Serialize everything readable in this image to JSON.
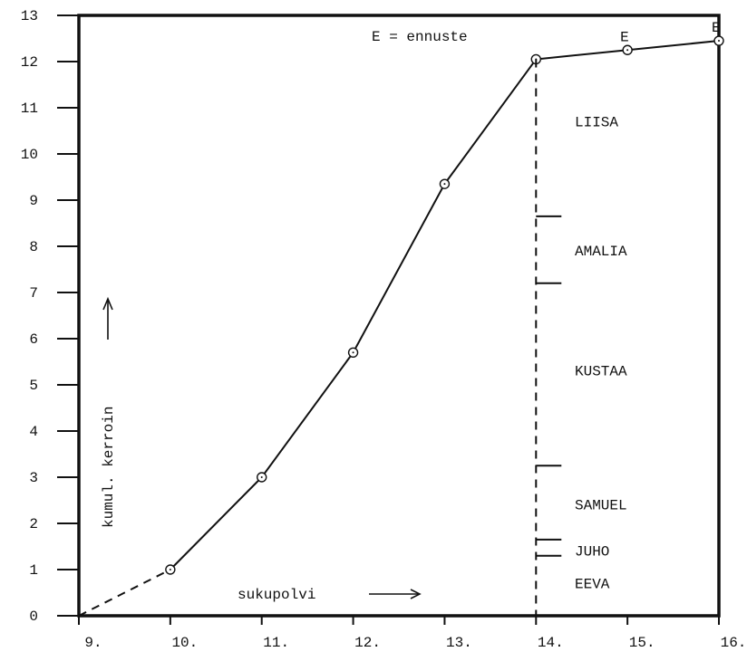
{
  "chart_data": {
    "type": "line",
    "title": "",
    "xlabel": "sukupolvi",
    "ylabel": "kumul. kerroin",
    "xlim": [
      9,
      16
    ],
    "ylim": [
      0,
      13
    ],
    "x_ticks": [
      "9.",
      "10.",
      "11.",
      "12.",
      "13.",
      "14.",
      "15.",
      "16."
    ],
    "y_ticks": [
      "0",
      "1",
      "2",
      "3",
      "4",
      "5",
      "6",
      "7",
      "8",
      "9",
      "10",
      "11",
      "12",
      "13"
    ],
    "grid": false,
    "series": [
      {
        "points": [
          {
            "x": 9,
            "y": 0,
            "marker": false,
            "dashed_to_next": true
          },
          {
            "x": 10,
            "y": 1.0,
            "marker": true
          },
          {
            "x": 11,
            "y": 3.0,
            "marker": true
          },
          {
            "x": 12,
            "y": 5.7,
            "marker": true
          },
          {
            "x": 13,
            "y": 9.35,
            "marker": true
          },
          {
            "x": 14,
            "y": 12.05,
            "marker": true
          },
          {
            "x": 15,
            "y": 12.25,
            "marker": true,
            "label": "E"
          },
          {
            "x": 16,
            "y": 12.45,
            "marker": true,
            "label": "E"
          }
        ]
      }
    ],
    "annotations": {
      "legend_note": "E = ennuste",
      "x_arrow_label": "sukupolvi",
      "y_arrow_label": "kumul. kerroin"
    },
    "segments_at_x": 14,
    "segment_boundaries": [
      1.3,
      1.65,
      3.25,
      7.2,
      8.65
    ],
    "segment_labels": [
      {
        "name": "EEVA",
        "y": 0.7
      },
      {
        "name": "JUHO",
        "y": 1.4
      },
      {
        "name": "SAMUEL",
        "y": 2.4
      },
      {
        "name": "KUSTAA",
        "y": 5.3
      },
      {
        "name": "AMALIA",
        "y": 7.9
      },
      {
        "name": "LIISA",
        "y": 10.7
      }
    ]
  }
}
